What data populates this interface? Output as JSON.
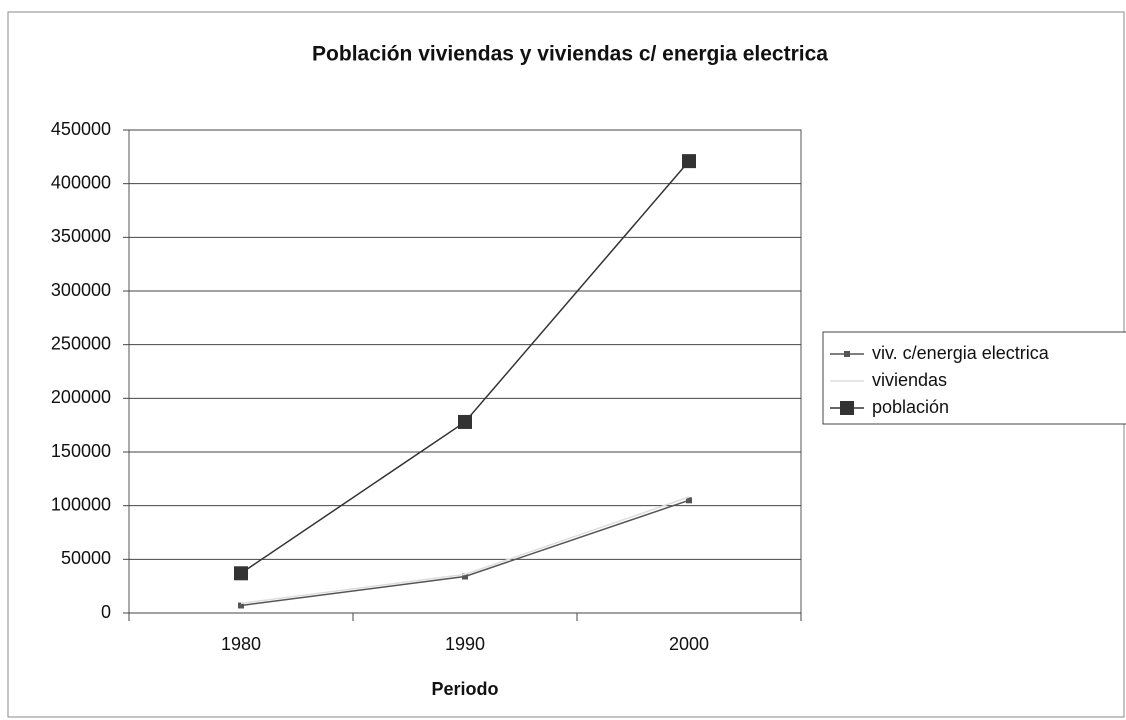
{
  "chart_data": {
    "type": "line",
    "title": "Población viviendas y viviendas c/ energia electrica",
    "x_label": "Periodo",
    "categories": [
      "1980",
      "1990",
      "2000"
    ],
    "series": [
      {
        "name": "viv. c/energia electrica",
        "color": "#555555",
        "values": [
          7000,
          34000,
          105000
        ]
      },
      {
        "name": "viviendas",
        "color": "#dddddd",
        "values": [
          9000,
          36000,
          108000
        ]
      },
      {
        "name": "población",
        "color": "#333333",
        "values": [
          37000,
          178000,
          421000
        ]
      }
    ],
    "ylim": [
      0,
      450000
    ],
    "yticks": [
      0,
      50000,
      100000,
      150000,
      200000,
      250000,
      300000,
      350000,
      400000,
      450000
    ],
    "grid": true,
    "legend": "right"
  }
}
